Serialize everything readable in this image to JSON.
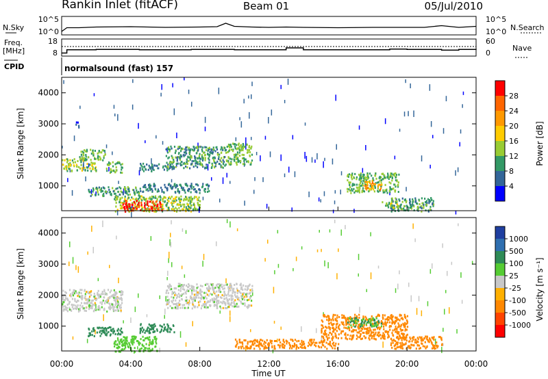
{
  "header": {
    "station": "Rankin Inlet (fitACF)",
    "beam": "Beam 01",
    "date": "05/Jul/2010"
  },
  "noise_panel": {
    "left_label": "N.Sky",
    "right_label": "N.Search",
    "left_ticks": [
      "10^5",
      "10^0"
    ],
    "right_ticks": [
      "10^5",
      "10^0"
    ]
  },
  "freq_panel": {
    "left_label": "Freq.",
    "left_unit": "[MHz]",
    "right_label": "Nave",
    "left_ticks": [
      "18",
      "8"
    ],
    "right_ticks": [
      "60",
      "0"
    ]
  },
  "cpid_panel": {
    "label": "CPID",
    "program": "normalsound (fast) 157"
  },
  "power_colorbar": {
    "title": "Power [dB]",
    "ticks": [
      "28",
      "24",
      "20",
      "16",
      "12",
      "8",
      "4"
    ],
    "colors": [
      "#ff0000",
      "#ff6600",
      "#ff9900",
      "#ffcc00",
      "#99cc33",
      "#339966",
      "#336699",
      "#0000ff"
    ]
  },
  "velocity_colorbar": {
    "title": "Velocity [m s⁻¹]",
    "ticks": [
      "1000",
      "500",
      "100",
      "25",
      "-25",
      "-100",
      "-500",
      "-1000"
    ],
    "colors": [
      "#1f3fa0",
      "#2f6fb0",
      "#2e8b57",
      "#55cc33",
      "#c8c8c8",
      "#ffb000",
      "#ff8800",
      "#ff4400",
      "#ff0000"
    ]
  },
  "chart_data": [
    {
      "type": "heatmap",
      "title": "Power",
      "ylabel": "Slant Range [km]",
      "xlabel": "",
      "ylim": [
        200,
        4500
      ],
      "xlim": [
        0,
        24
      ],
      "yticks": [
        "4000",
        "3000",
        "2000",
        "1000"
      ],
      "features": [
        {
          "t": [
            0.0,
            2.0
          ],
          "range": [
            1500,
            1900
          ],
          "power": 14
        },
        {
          "t": [
            1.0,
            2.5
          ],
          "range": [
            1850,
            2200
          ],
          "power": 12
        },
        {
          "t": [
            0.8,
            1.0
          ],
          "range": [
            2900,
            3100
          ],
          "power": 6
        },
        {
          "t": [
            2.5,
            3.5
          ],
          "range": [
            1450,
            1800
          ],
          "power": 12
        },
        {
          "t": [
            4.5,
            6.5
          ],
          "range": [
            1500,
            1750
          ],
          "power": 8
        },
        {
          "t": [
            6.0,
            9.5
          ],
          "range": [
            1600,
            2300
          ],
          "power": 10
        },
        {
          "t": [
            9.5,
            11.0
          ],
          "range": [
            1700,
            2400
          ],
          "power": 12
        },
        {
          "t": [
            1.5,
            4.5
          ],
          "range": [
            700,
            1000
          ],
          "power": 10
        },
        {
          "t": [
            3.0,
            8.0
          ],
          "range": [
            200,
            700
          ],
          "power": 14
        },
        {
          "t": [
            3.5,
            5.8
          ],
          "range": [
            200,
            550
          ],
          "power": 28
        },
        {
          "t": [
            4.5,
            8.5
          ],
          "range": [
            800,
            1100
          ],
          "power": 8
        },
        {
          "t": [
            16.5,
            19.5
          ],
          "range": [
            800,
            1450
          ],
          "power": 12
        },
        {
          "t": [
            17.5,
            18.5
          ],
          "range": [
            900,
            1200
          ],
          "power": 22
        },
        {
          "t": [
            19.0,
            21.5
          ],
          "range": [
            200,
            650
          ],
          "power": 10
        },
        {
          "t": [
            18.5,
            19.5
          ],
          "range": [
            300,
            550
          ],
          "power": 14
        }
      ]
    },
    {
      "type": "heatmap",
      "title": "Velocity",
      "ylabel": "Slant Range [km]",
      "xlabel": "Time UT",
      "ylim": [
        200,
        4500
      ],
      "xlim": [
        0,
        24
      ],
      "yticks": [
        "4000",
        "3000",
        "2000",
        "1000"
      ],
      "xticks": [
        "00:00",
        "04:00",
        "08:00",
        "12:00",
        "16:00",
        "20:00",
        "00:00"
      ],
      "features": [
        {
          "t": [
            0.0,
            3.5
          ],
          "range": [
            1500,
            2200
          ],
          "velocity": 0
        },
        {
          "t": [
            6.0,
            11.0
          ],
          "range": [
            1600,
            2400
          ],
          "velocity": 0
        },
        {
          "t": [
            1.5,
            3.5
          ],
          "range": [
            700,
            1000
          ],
          "velocity": 200
        },
        {
          "t": [
            3.0,
            5.5
          ],
          "range": [
            200,
            700
          ],
          "velocity": 60
        },
        {
          "t": [
            4.5,
            6.5
          ],
          "range": [
            800,
            1100
          ],
          "velocity": 300
        },
        {
          "t": [
            10.0,
            16.0
          ],
          "range": [
            300,
            600
          ],
          "velocity": -150
        },
        {
          "t": [
            15.0,
            20.0
          ],
          "range": [
            600,
            1400
          ],
          "velocity": -300
        },
        {
          "t": [
            19.0,
            22.0
          ],
          "range": [
            300,
            700
          ],
          "velocity": -400
        },
        {
          "t": [
            16.5,
            18.5
          ],
          "range": [
            1000,
            1300
          ],
          "velocity": 100
        }
      ]
    },
    {
      "type": "line",
      "title": "N.Sky",
      "x": [
        0,
        0.3,
        1,
        2,
        4,
        6,
        8,
        9,
        9.5,
        10,
        11,
        12,
        13,
        14,
        16,
        18,
        20,
        21,
        22,
        23,
        24
      ],
      "y_log10": [
        0.8,
        1.9,
        1.9,
        2.1,
        2.2,
        2.0,
        2.1,
        2.2,
        3.2,
        2.3,
        2.1,
        2.0,
        2.1,
        2.0,
        1.9,
        2.0,
        2.0,
        2.0,
        2.5,
        2.0,
        2.3
      ],
      "ylim": [
        0,
        5
      ]
    },
    {
      "type": "line",
      "title": "Freq.",
      "x": [
        0,
        0.3,
        2,
        4.5,
        7.5,
        10,
        13,
        14,
        17,
        19,
        20,
        22,
        23,
        24
      ],
      "y": [
        9.5,
        11.6,
        11.8,
        11.6,
        11.8,
        11.6,
        12.8,
        11.6,
        11.6,
        12.0,
        11.8,
        11.4,
        11.8,
        11.6
      ],
      "ylim": [
        8,
        18
      ]
    }
  ]
}
